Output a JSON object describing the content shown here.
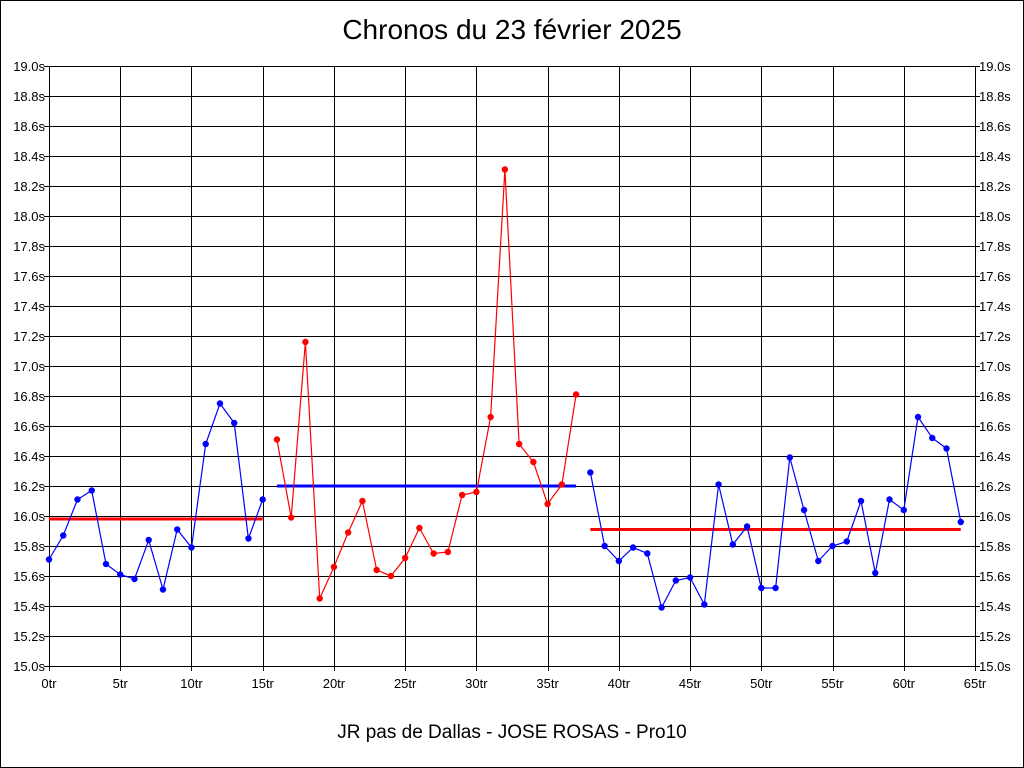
{
  "chart_data": {
    "type": "line",
    "title": "Chronos du 23 février 2025",
    "subtitle": "JR pas de Dallas - JOSE ROSAS - Pro10",
    "xlabel": "",
    "ylabel": "",
    "xlim": [
      0,
      65
    ],
    "ylim": [
      15.0,
      19.0
    ],
    "x_ticks": [
      0,
      5,
      10,
      15,
      20,
      25,
      30,
      35,
      40,
      45,
      50,
      55,
      60,
      65
    ],
    "x_tick_suffix": "tr",
    "y_ticks": [
      15.0,
      15.2,
      15.4,
      15.6,
      15.8,
      16.0,
      16.2,
      16.4,
      16.6,
      16.8,
      17.0,
      17.2,
      17.4,
      17.6,
      17.8,
      18.0,
      18.2,
      18.4,
      18.6,
      18.8,
      19.0
    ],
    "y_tick_suffix": "s",
    "grid": true,
    "series": [
      {
        "color": "#0000ff",
        "x": [
          0,
          1,
          2,
          3,
          4,
          5,
          6,
          7,
          8,
          9,
          10,
          11,
          12,
          13,
          14,
          15
        ],
        "values": [
          15.71,
          15.87,
          16.11,
          16.17,
          15.68,
          15.61,
          15.58,
          15.84,
          15.51,
          15.91,
          15.79,
          16.48,
          16.75,
          16.62,
          15.85,
          16.11
        ]
      },
      {
        "color": "#ff0000",
        "x": [
          16,
          17,
          18,
          19,
          20,
          21,
          22,
          23,
          24,
          25,
          26,
          27,
          28,
          29,
          30,
          31,
          32,
          33,
          34,
          35,
          36,
          37
        ],
        "values": [
          16.51,
          15.99,
          17.16,
          15.45,
          15.66,
          15.89,
          16.1,
          15.64,
          15.6,
          15.72,
          15.92,
          15.75,
          15.76,
          16.14,
          16.16,
          16.66,
          18.31,
          16.48,
          16.36,
          16.08,
          16.21,
          16.81
        ]
      },
      {
        "color": "#0000ff",
        "x": [
          38,
          39,
          40,
          41,
          42,
          43,
          44,
          45,
          46,
          47,
          48,
          49,
          50,
          51,
          52,
          53,
          54,
          55,
          56,
          57,
          58,
          59,
          60,
          61,
          62,
          63,
          64
        ],
        "values": [
          16.29,
          15.8,
          15.7,
          15.79,
          15.75,
          15.39,
          15.57,
          15.59,
          15.41,
          16.21,
          15.81,
          15.93,
          15.52,
          15.52,
          16.39,
          16.04,
          15.7,
          15.8,
          15.83,
          16.1,
          15.62,
          16.11,
          16.04,
          16.66,
          16.52,
          16.45,
          15.96
        ]
      }
    ],
    "averages": [
      {
        "color": "#ff0000",
        "x_from": 0,
        "x_to": 15,
        "value": 15.98
      },
      {
        "color": "#0000ff",
        "x_from": 16,
        "x_to": 37,
        "value": 16.2
      },
      {
        "color": "#ff0000",
        "x_from": 38,
        "x_to": 64,
        "value": 15.91
      }
    ]
  }
}
